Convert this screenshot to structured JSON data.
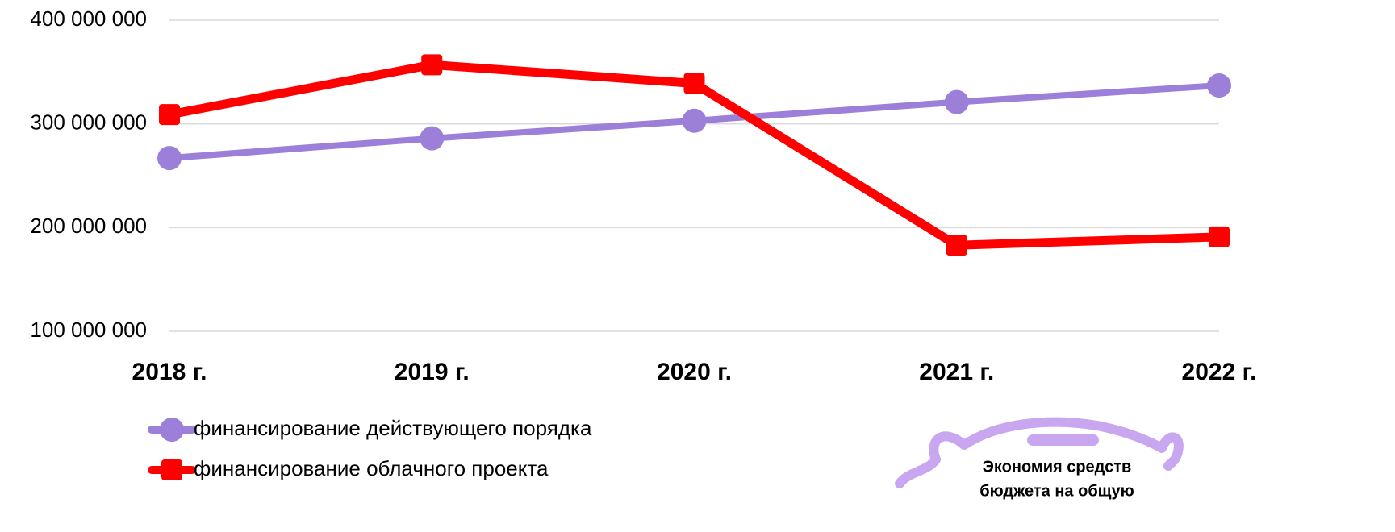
{
  "chart_data": {
    "type": "line",
    "categories": [
      "2018 г.",
      "2019 г.",
      "2020 г.",
      "2021 г.",
      "2022 г."
    ],
    "series": [
      {
        "name": "финансирование действующего порядка",
        "color": "#9b7fd9",
        "marker": "circle",
        "values": [
          267000000,
          286000000,
          303000000,
          321000000,
          337000000
        ]
      },
      {
        "name": "финансирование облачного проекта",
        "color": "#ff0000",
        "marker": "square",
        "values": [
          309000000,
          357000000,
          339000000,
          183000000,
          191000000
        ]
      }
    ],
    "ylim": [
      100000000,
      400000000
    ],
    "yticks": [
      {
        "value": 100000000,
        "label": "100 000 000"
      },
      {
        "value": 200000000,
        "label": "200 000 000"
      },
      {
        "value": 300000000,
        "label": "300 000 000"
      },
      {
        "value": 400000000,
        "label": "400 000 000"
      }
    ],
    "grid": true,
    "legend": "bottom-left",
    "annotation": [
      "Экономия средств",
      "бюджета на общую"
    ]
  }
}
